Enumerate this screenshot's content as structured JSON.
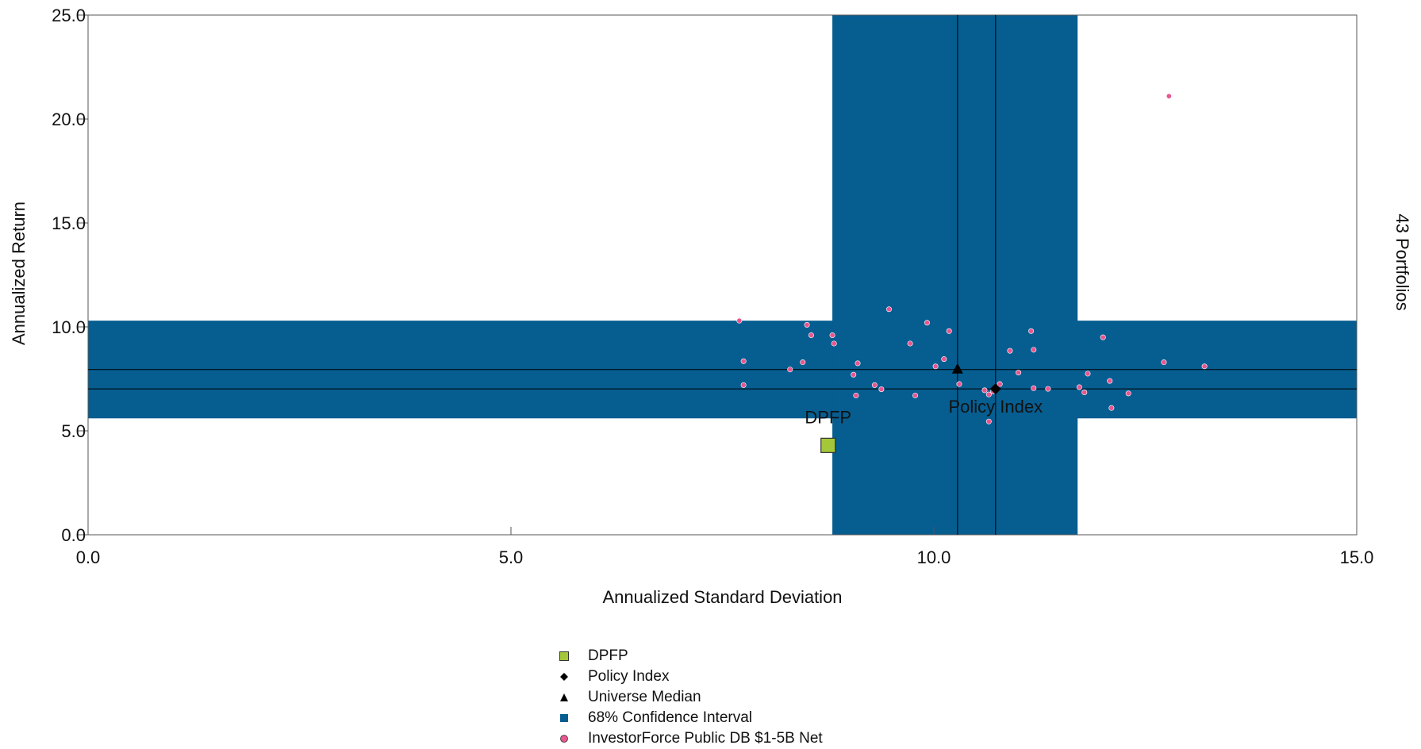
{
  "chart_data": {
    "type": "scatter",
    "xlabel": "Annualized Standard Deviation",
    "ylabel": "Annualized Return",
    "right_label": "43 Portfolios",
    "xlim": [
      0,
      15
    ],
    "ylim": [
      0,
      25
    ],
    "x_ticks": [
      "0.0",
      "5.0",
      "10.0",
      "15.0"
    ],
    "y_ticks": [
      "0.0",
      "5.0",
      "10.0",
      "15.0",
      "20.0",
      "25.0"
    ],
    "confidence_interval": {
      "x_range": [
        8.8,
        11.7
      ],
      "y_range": [
        5.6,
        10.3
      ]
    },
    "median_lines": {
      "x": 10.28,
      "y": 7.95
    },
    "policy_lines": {
      "x": 10.73,
      "y": 7.02
    },
    "points": {
      "dpfp": {
        "name": "DPFP",
        "x": 8.75,
        "y": 4.3
      },
      "policy_index": {
        "name": "Policy Index",
        "x": 10.73,
        "y": 7.02
      },
      "universe_median": {
        "name": "Universe Median",
        "x": 10.28,
        "y": 7.95
      }
    },
    "universe": {
      "name": "InvestorForce Public DB $1-5B Net",
      "points": [
        [
          7.7,
          10.3
        ],
        [
          7.75,
          8.35
        ],
        [
          7.75,
          7.2
        ],
        [
          8.3,
          7.95
        ],
        [
          8.45,
          8.3
        ],
        [
          8.5,
          10.1
        ],
        [
          8.55,
          9.6
        ],
        [
          8.8,
          9.6
        ],
        [
          8.82,
          9.2
        ],
        [
          9.05,
          7.7
        ],
        [
          9.08,
          6.7
        ],
        [
          9.1,
          8.25
        ],
        [
          9.3,
          7.2
        ],
        [
          9.38,
          7.0
        ],
        [
          9.47,
          10.85
        ],
        [
          9.72,
          9.2
        ],
        [
          9.78,
          6.7
        ],
        [
          9.92,
          10.2
        ],
        [
          10.02,
          8.1
        ],
        [
          10.12,
          8.45
        ],
        [
          10.18,
          9.8
        ],
        [
          10.3,
          7.25
        ],
        [
          10.6,
          6.95
        ],
        [
          10.65,
          6.75
        ],
        [
          10.65,
          5.45
        ],
        [
          10.7,
          6.9
        ],
        [
          10.78,
          7.25
        ],
        [
          10.9,
          8.85
        ],
        [
          11.0,
          7.8
        ],
        [
          11.15,
          9.8
        ],
        [
          11.18,
          8.9
        ],
        [
          11.18,
          7.05
        ],
        [
          11.35,
          7.02
        ],
        [
          11.72,
          7.1
        ],
        [
          11.78,
          6.85
        ],
        [
          11.82,
          7.75
        ],
        [
          12.0,
          9.5
        ],
        [
          12.08,
          7.4
        ],
        [
          12.1,
          6.1
        ],
        [
          12.3,
          6.8
        ],
        [
          12.72,
          8.3
        ],
        [
          12.78,
          21.1
        ],
        [
          13.2,
          8.1
        ]
      ]
    },
    "legend": [
      {
        "label": "DPFP",
        "marker": "square",
        "color": "#a4c739"
      },
      {
        "label": "Policy Index",
        "marker": "diamond",
        "color": "#000000"
      },
      {
        "label": "Universe Median",
        "marker": "triangle",
        "color": "#000000"
      },
      {
        "label": "68% Confidence Interval",
        "marker": "square",
        "color": "#065d90"
      },
      {
        "label": "InvestorForce Public DB $1-5B Net",
        "marker": "circle",
        "color": "#e8568f"
      }
    ],
    "colors": {
      "band": "#065d90",
      "dpfp": "#a4c739",
      "universe": "#e8568f",
      "lines": "#000000"
    }
  }
}
